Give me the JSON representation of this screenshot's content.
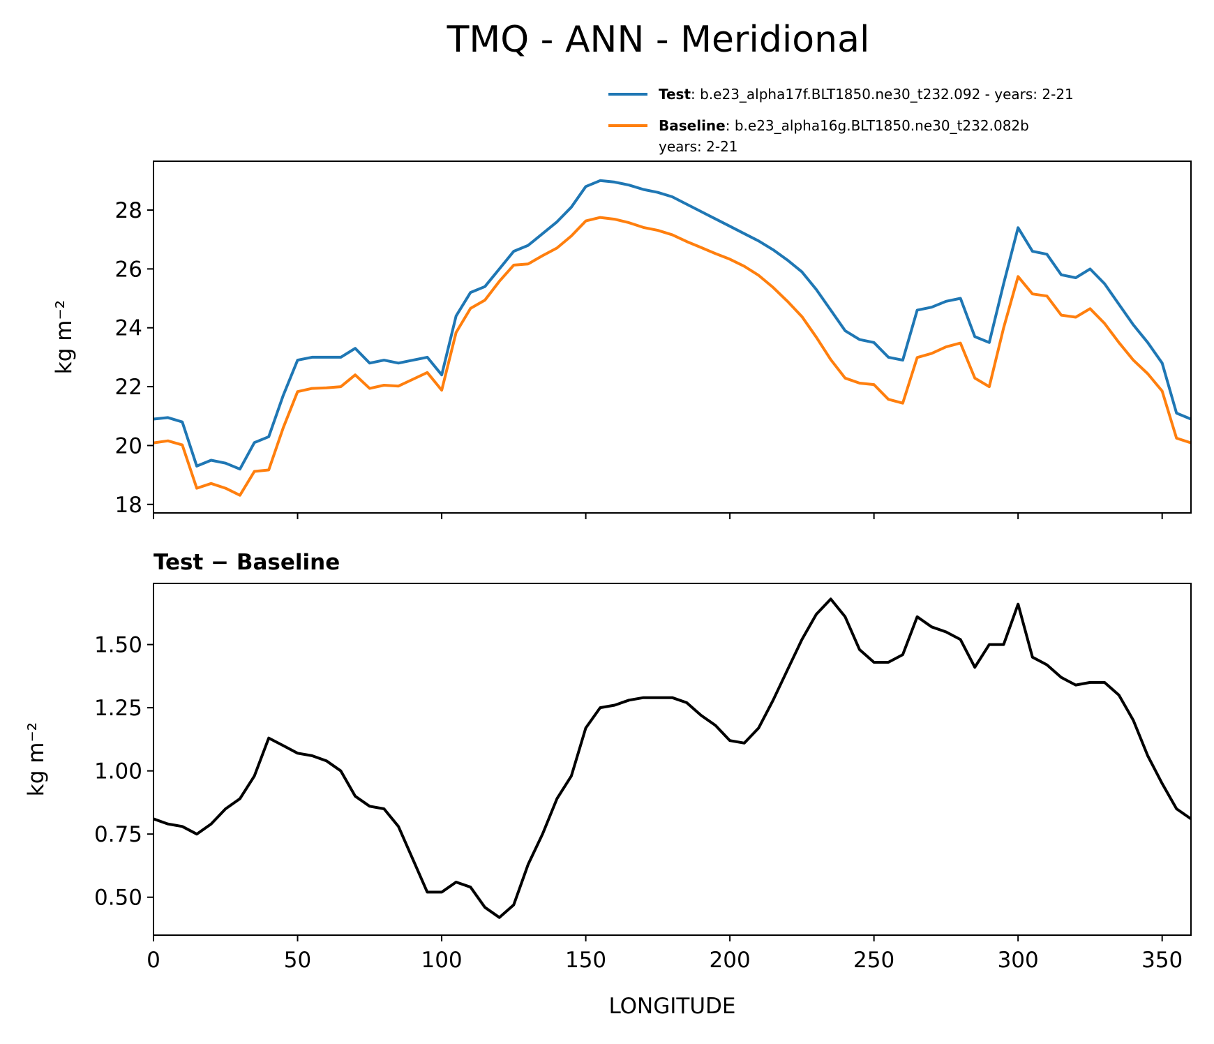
{
  "chart_data": [
    {
      "type": "line",
      "title": "TMQ - ANN - Meridional",
      "ylabel": "kg m⁻²",
      "x": [
        0,
        5,
        10,
        15,
        20,
        25,
        30,
        35,
        40,
        45,
        50,
        55,
        60,
        65,
        70,
        75,
        80,
        85,
        90,
        95,
        100,
        105,
        110,
        115,
        120,
        125,
        130,
        135,
        140,
        145,
        150,
        155,
        160,
        165,
        170,
        175,
        180,
        185,
        190,
        195,
        200,
        205,
        210,
        215,
        220,
        225,
        230,
        235,
        240,
        245,
        250,
        255,
        260,
        265,
        270,
        275,
        280,
        285,
        290,
        295,
        300,
        305,
        310,
        315,
        320,
        325,
        330,
        335,
        340,
        345,
        350,
        355,
        360
      ],
      "series": [
        {
          "name": "Test",
          "label": ": b.e23_alpha17f.BLT1850.ne30_t232.092 - years: 2-21",
          "color": "#1f77b4",
          "values": [
            20.9,
            20.95,
            20.8,
            19.3,
            19.5,
            19.4,
            19.2,
            20.1,
            20.3,
            21.7,
            22.9,
            23.0,
            23.0,
            23.0,
            23.3,
            22.8,
            22.9,
            22.8,
            22.9,
            23.0,
            22.4,
            24.4,
            25.2,
            25.4,
            26.0,
            26.6,
            26.8,
            27.2,
            27.6,
            28.1,
            28.8,
            29.0,
            28.95,
            28.85,
            28.7,
            28.6,
            28.45,
            28.2,
            27.95,
            27.7,
            27.45,
            27.2,
            26.95,
            26.65,
            26.3,
            25.9,
            25.3,
            24.6,
            23.9,
            23.6,
            23.5,
            23.0,
            22.9,
            24.6,
            24.7,
            24.9,
            25.0,
            23.7,
            23.5,
            25.5,
            27.4,
            26.6,
            26.5,
            25.8,
            25.7,
            26.0,
            25.5,
            24.8,
            24.1,
            23.5,
            22.8,
            21.1,
            20.9
          ]
        },
        {
          "name": "Baseline",
          "label_lines": [
            ": b.e23_alpha16g.BLT1850.ne30_t232.082b",
            "years: 2-21"
          ],
          "color": "#ff7f0e",
          "values": [
            20.09,
            20.16,
            20.02,
            18.55,
            18.71,
            18.55,
            18.31,
            19.12,
            19.17,
            20.6,
            21.83,
            21.94,
            21.96,
            22.0,
            22.4,
            21.94,
            22.05,
            22.02,
            22.25,
            22.48,
            21.88,
            23.84,
            24.66,
            24.94,
            25.58,
            26.13,
            26.17,
            26.45,
            26.71,
            27.12,
            27.63,
            27.75,
            27.69,
            27.57,
            27.41,
            27.31,
            27.16,
            26.93,
            26.73,
            26.52,
            26.33,
            26.09,
            25.78,
            25.37,
            24.9,
            24.38,
            23.68,
            22.92,
            22.29,
            22.12,
            22.07,
            21.57,
            21.44,
            22.99,
            23.13,
            23.35,
            23.48,
            22.29,
            22.0,
            24.0,
            25.74,
            25.15,
            25.08,
            24.43,
            24.36,
            24.65,
            24.15,
            23.5,
            22.9,
            22.44,
            21.85,
            20.25,
            20.09
          ]
        }
      ],
      "xlim": [
        0,
        360
      ],
      "xticks": [
        0,
        50,
        100,
        150,
        200,
        250,
        300,
        350
      ],
      "ylim": [
        17.71,
        29.66
      ],
      "yticks": [
        18,
        20,
        22,
        24,
        26,
        28
      ]
    },
    {
      "type": "line",
      "title": "Test − Baseline",
      "ylabel": "kg m⁻²",
      "xlabel": "LONGITUDE",
      "x": [
        0,
        5,
        10,
        15,
        20,
        25,
        30,
        35,
        40,
        45,
        50,
        55,
        60,
        65,
        70,
        75,
        80,
        85,
        90,
        95,
        100,
        105,
        110,
        115,
        120,
        125,
        130,
        135,
        140,
        145,
        150,
        155,
        160,
        165,
        170,
        175,
        180,
        185,
        190,
        195,
        200,
        205,
        210,
        215,
        220,
        225,
        230,
        235,
        240,
        245,
        250,
        255,
        260,
        265,
        270,
        275,
        280,
        285,
        290,
        295,
        300,
        305,
        310,
        315,
        320,
        325,
        330,
        335,
        340,
        345,
        350,
        355,
        360
      ],
      "series": [
        {
          "color": "#000000",
          "values": [
            0.81,
            0.79,
            0.78,
            0.75,
            0.79,
            0.85,
            0.89,
            0.98,
            1.13,
            1.1,
            1.07,
            1.06,
            1.04,
            1.0,
            0.9,
            0.86,
            0.85,
            0.78,
            0.65,
            0.52,
            0.52,
            0.56,
            0.54,
            0.46,
            0.42,
            0.47,
            0.63,
            0.75,
            0.89,
            0.98,
            1.17,
            1.25,
            1.26,
            1.28,
            1.29,
            1.29,
            1.29,
            1.27,
            1.22,
            1.18,
            1.12,
            1.11,
            1.17,
            1.28,
            1.4,
            1.52,
            1.62,
            1.68,
            1.61,
            1.48,
            1.43,
            1.43,
            1.46,
            1.61,
            1.57,
            1.55,
            1.52,
            1.41,
            1.5,
            1.5,
            1.66,
            1.45,
            1.42,
            1.37,
            1.34,
            1.35,
            1.35,
            1.3,
            1.2,
            1.06,
            0.95,
            0.85,
            0.81
          ]
        }
      ],
      "xlim": [
        0,
        360
      ],
      "xticks": [
        0,
        50,
        100,
        150,
        200,
        250,
        300,
        350
      ],
      "xticklabels": true,
      "ylim": [
        0.35,
        1.742
      ],
      "yticks": [
        {
          "value": 0.5,
          "label": "0.50"
        },
        {
          "value": 0.75,
          "label": "0.75"
        },
        {
          "value": 1.0,
          "label": "1.00"
        },
        {
          "value": 1.25,
          "label": "1.25"
        },
        {
          "value": 1.5,
          "label": "1.50"
        }
      ]
    }
  ]
}
